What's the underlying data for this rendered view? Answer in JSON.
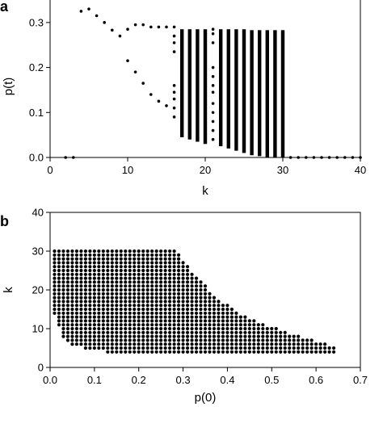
{
  "chart_data": [
    {
      "panel_label": "a",
      "type": "scatter",
      "xlabel": "k",
      "ylabel": "p(t)",
      "xlim": [
        0,
        40
      ],
      "ylim": [
        0,
        0.35
      ],
      "xticks": [
        "0",
        "10",
        "20",
        "30",
        "40"
      ],
      "yticks": [
        "0.0",
        "0.1",
        "0.2",
        "0.3"
      ],
      "grid": false,
      "points": [
        [
          2,
          0
        ],
        [
          3,
          0
        ],
        [
          4,
          0.325
        ],
        [
          5,
          0.33
        ],
        [
          6,
          0.315
        ],
        [
          7,
          0.3
        ],
        [
          8,
          0.283
        ],
        [
          9,
          0.27
        ],
        [
          10,
          0.285
        ],
        [
          10,
          0.215
        ],
        [
          11,
          0.295
        ],
        [
          11,
          0.19
        ],
        [
          12,
          0.295
        ],
        [
          12,
          0.165
        ],
        [
          13,
          0.29
        ],
        [
          13,
          0.14
        ],
        [
          14,
          0.29
        ],
        [
          14,
          0.125
        ],
        [
          15,
          0.29
        ],
        [
          15,
          0.115
        ],
        [
          16,
          0.29
        ],
        [
          16,
          0.27
        ],
        [
          16,
          0.255
        ],
        [
          16,
          0.235
        ],
        [
          16,
          0.16
        ],
        [
          16,
          0.145
        ],
        [
          16,
          0.13
        ],
        [
          16,
          0.11
        ],
        [
          16,
          0.09
        ],
        [
          31,
          0
        ],
        [
          32,
          0
        ],
        [
          33,
          0
        ],
        [
          34,
          0
        ],
        [
          35,
          0
        ],
        [
          36,
          0
        ],
        [
          37,
          0
        ],
        [
          38,
          0
        ],
        [
          39,
          0
        ],
        [
          40,
          0
        ]
      ],
      "columns": [
        {
          "k": 17,
          "ymin": 0.045,
          "ymax": 0.285
        },
        {
          "k": 18,
          "ymin": 0.04,
          "ymax": 0.285
        },
        {
          "k": 19,
          "ymin": 0.035,
          "ymax": 0.285
        },
        {
          "k": 20,
          "ymin": 0.03,
          "ymax": 0.285
        },
        {
          "k": 22,
          "ymin": 0.025,
          "ymax": 0.285
        },
        {
          "k": 23,
          "ymin": 0.02,
          "ymax": 0.285
        },
        {
          "k": 24,
          "ymin": 0.015,
          "ymax": 0.285
        },
        {
          "k": 25,
          "ymin": 0.01,
          "ymax": 0.285
        },
        {
          "k": 26,
          "ymin": 0.005,
          "ymax": 0.283
        },
        {
          "k": 27,
          "ymin": 0.003,
          "ymax": 0.283
        },
        {
          "k": 28,
          "ymin": 0,
          "ymax": 0.283
        },
        {
          "k": 29,
          "ymin": 0,
          "ymax": 0.283
        },
        {
          "k": 30,
          "ymin": 0,
          "ymax": 0.283
        }
      ],
      "sparse_column_21": [
        0.285,
        0.275,
        0.255,
        0.2,
        0.18,
        0.16,
        0.145,
        0.12,
        0.1,
        0.08,
        0.06,
        0.04
      ]
    },
    {
      "panel_label": "b",
      "type": "scatter",
      "xlabel": "p(0)",
      "ylabel": "k",
      "xlim": [
        0,
        0.7
      ],
      "ylim": [
        0,
        40
      ],
      "xticks": [
        "0.0",
        "0.1",
        "0.2",
        "0.3",
        "0.4",
        "0.5",
        "0.6",
        "0.7"
      ],
      "yticks": [
        "0",
        "10",
        "20",
        "30",
        "40"
      ],
      "grid": false,
      "grid_step_p0": 0.01,
      "grid_step_k": 1,
      "region_boundary": {
        "p0_range": [
          0.01,
          0.64
        ],
        "k_max_flat": 30,
        "k_max_flat_until_p0": 0.28,
        "upper_edge": [
          [
            0.28,
            30
          ],
          [
            0.32,
            24
          ],
          [
            0.38,
            17
          ],
          [
            0.45,
            12
          ],
          [
            0.55,
            8
          ],
          [
            0.64,
            5
          ]
        ],
        "lower_edge": [
          [
            0.01,
            14
          ],
          [
            0.02,
            11
          ],
          [
            0.03,
            8
          ],
          [
            0.05,
            6
          ],
          [
            0.1,
            5
          ],
          [
            0.15,
            4
          ],
          [
            0.64,
            4
          ]
        ]
      }
    }
  ]
}
